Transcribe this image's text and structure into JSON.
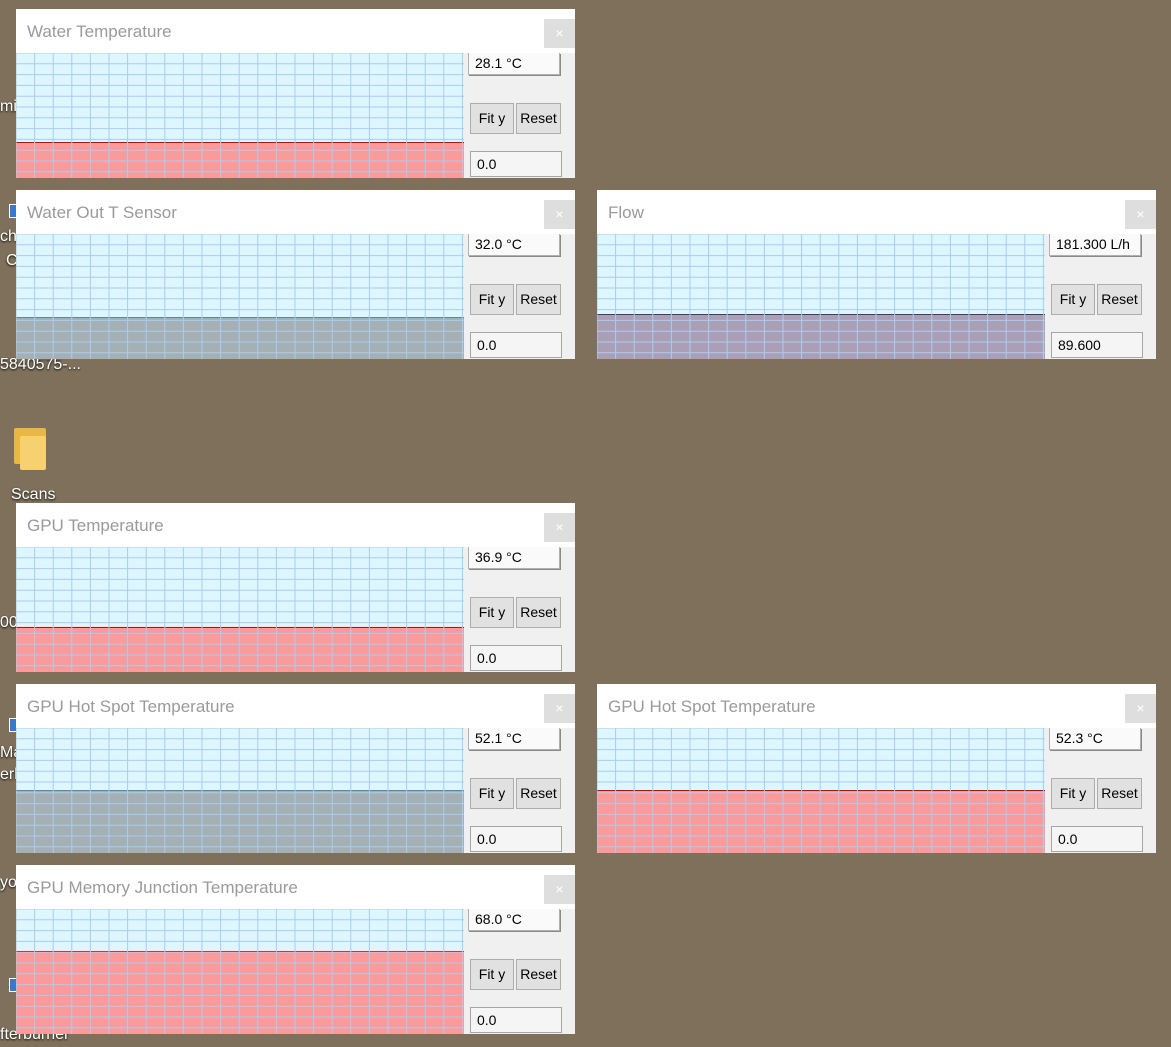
{
  "desktop": {
    "fragments": [
      "mi",
      "ch",
      "C",
      "5840575-...",
      "Scans",
      "00",
      "Ma",
      "erk",
      "yo",
      "fterburner"
    ]
  },
  "windows": [
    {
      "title": "Water Temperature",
      "max": "28.1 °C",
      "min": "0.0",
      "fit": "Fit y",
      "reset": "Reset",
      "close": "×",
      "fill_level": 0.28,
      "fill_color": "#fb9a9a",
      "line_color": "#d40000"
    },
    {
      "title": "Water Out T Sensor",
      "max": "32.0 °C",
      "min": "0.0",
      "fit": "Fit y",
      "reset": "Reset",
      "close": "×",
      "fill_level": 0.33,
      "fill_color": "#a4b0b4",
      "line_color": "#5a8a9a"
    },
    {
      "title": "Flow",
      "max": "181.300 L/h",
      "min": "89.600",
      "fit": "Fit y",
      "reset": "Reset",
      "close": "×",
      "fill_level": 0.35,
      "fill_color": "#ab9fb7",
      "line_color": "#4a3a5a"
    },
    {
      "title": "GPU Temperature",
      "max": "36.9 °C",
      "min": "0.0",
      "fit": "Fit y",
      "reset": "Reset",
      "close": "×",
      "fill_level": 0.35,
      "fill_color": "#fb9a9a",
      "line_color": "#d40000"
    },
    {
      "title": "GPU Hot Spot Temperature",
      "max": "52.1 °C",
      "min": "0.0",
      "fit": "Fit y",
      "reset": "Reset",
      "close": "×",
      "fill_level": 0.5,
      "fill_color": "#a4b0b4",
      "line_color": "#5a8a9a"
    },
    {
      "title": "GPU Hot Spot Temperature",
      "max": "52.3 °C",
      "min": "0.0",
      "fit": "Fit y",
      "reset": "Reset",
      "close": "×",
      "fill_level": 0.5,
      "fill_color": "#fb9a9a",
      "line_color": "#d40000"
    },
    {
      "title": "GPU Memory Junction Temperature",
      "max": "68.0 °C",
      "min": "0.0",
      "fit": "Fit y",
      "reset": "Reset",
      "close": "×",
      "fill_level": 0.66,
      "fill_color": "#fb9a9a",
      "line_color": "#d40000"
    }
  ]
}
